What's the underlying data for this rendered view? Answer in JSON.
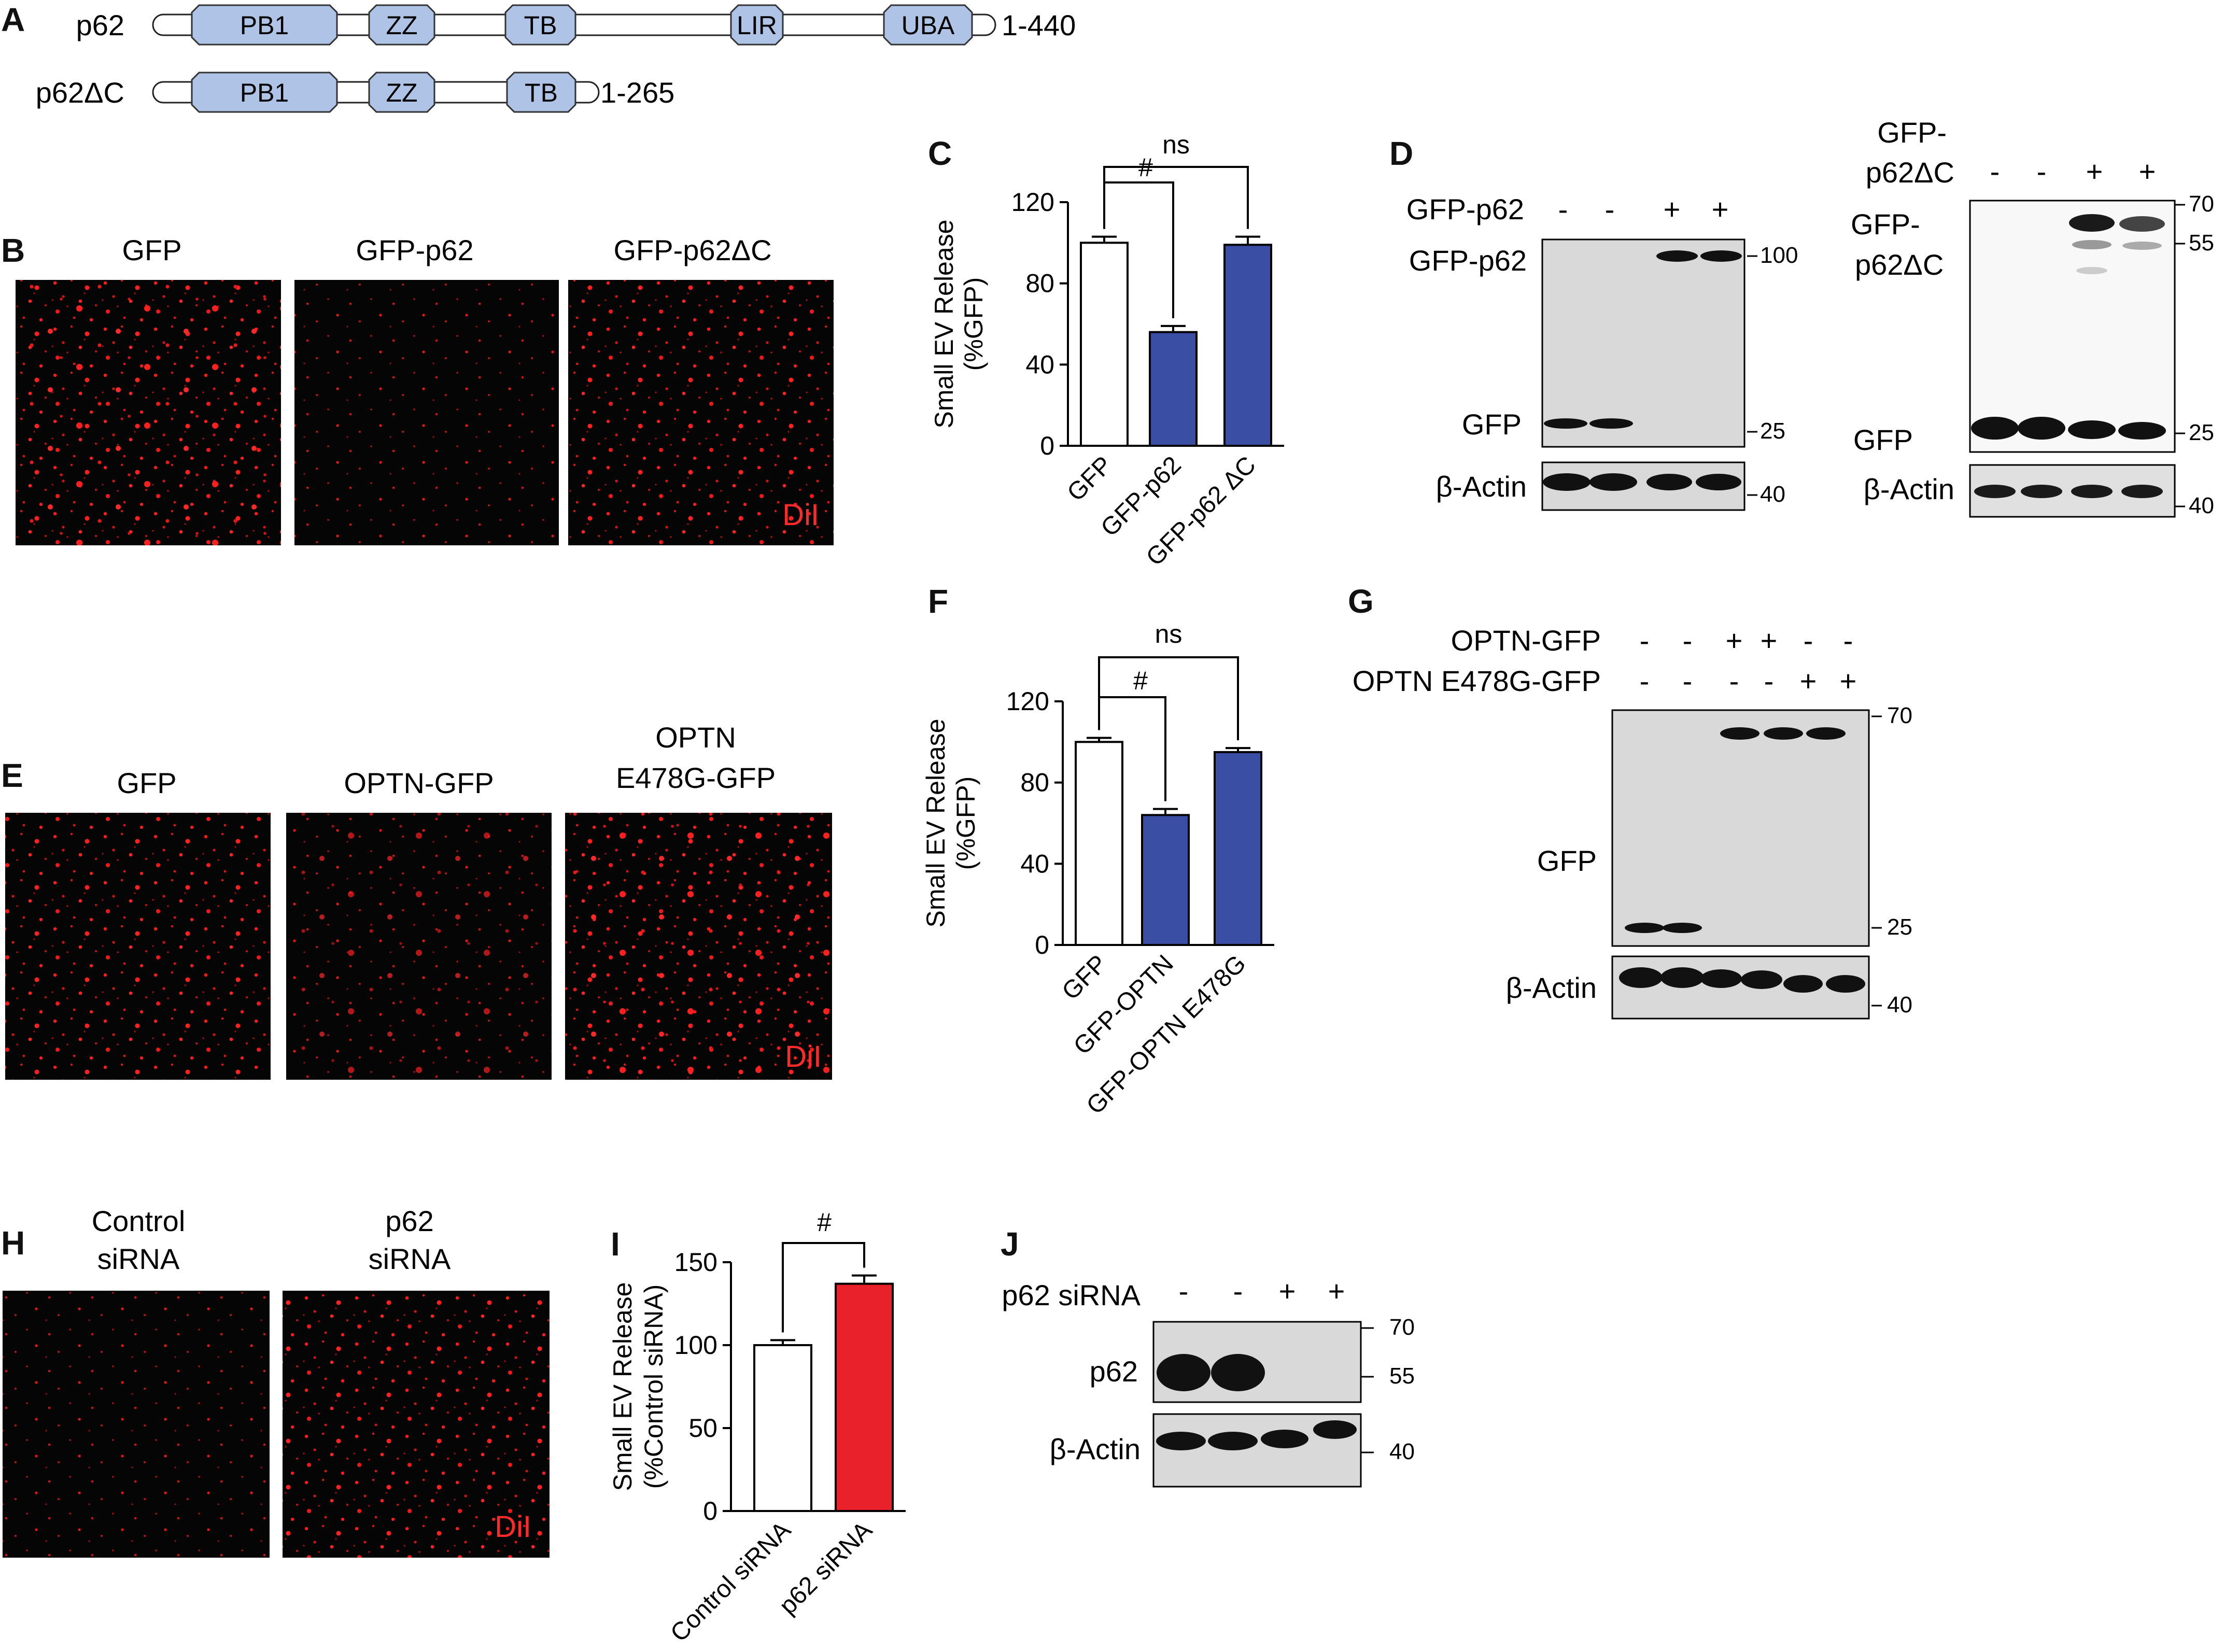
{
  "panel_letters": {
    "A": "A",
    "B": "B",
    "C": "C",
    "D": "D",
    "E": "E",
    "F": "F",
    "G": "G",
    "H": "H",
    "I": "I",
    "J": "J"
  },
  "panel_a": {
    "constructs": [
      {
        "name": "p62",
        "range": "1-440",
        "domains": [
          "PB1",
          "ZZ",
          "TB",
          "LIR",
          "UBA"
        ]
      },
      {
        "name": "p62ΔC",
        "range": "1-265",
        "domains": [
          "PB1",
          "ZZ",
          "TB"
        ]
      }
    ]
  },
  "panel_b": {
    "labels": [
      "GFP",
      "GFP-p62",
      "GFP-p62ΔC"
    ],
    "stain": "DiI"
  },
  "panel_e": {
    "labels": [
      "GFP",
      "OPTN-GFP",
      "OPTN",
      "E478G-GFP"
    ],
    "stain": "DiI"
  },
  "panel_h": {
    "labels": [
      "Control",
      "siRNA",
      "p62",
      "siRNA"
    ],
    "stain": "DiI"
  },
  "panel_d": {
    "left": {
      "row_label": "GFP-p62",
      "signs": [
        "-",
        "-",
        "+",
        "+"
      ],
      "bands": [
        "GFP-p62",
        "GFP",
        "β-Actin"
      ],
      "markers": [
        "100",
        "25",
        "40"
      ]
    },
    "right": {
      "row_label_1": "GFP-",
      "row_label_2": "p62ΔC",
      "signs": [
        "-",
        "-",
        "+",
        "+"
      ],
      "bands_1": "GFP-",
      "bands_2": "p62ΔC",
      "bands_gfp": "GFP",
      "bands_actin": "β-Actin",
      "markers": [
        "70",
        "55",
        "25",
        "40"
      ]
    }
  },
  "panel_g": {
    "row1": "OPTN-GFP",
    "row1_signs": [
      "-",
      "-",
      "+",
      "+",
      "-",
      "-"
    ],
    "row2": "OPTN E478G-GFP",
    "row2_signs": [
      "-",
      "-",
      "-",
      "-",
      "+",
      "+"
    ],
    "bands": [
      "GFP",
      "β-Actin"
    ],
    "markers": [
      "70",
      "25",
      "40"
    ]
  },
  "panel_j": {
    "row": "p62 siRNA",
    "signs": [
      "-",
      "-",
      "+",
      "+"
    ],
    "bands": [
      "p62",
      "β-Actin"
    ],
    "markers": [
      "70",
      "55",
      "40"
    ]
  },
  "chart_data": [
    {
      "panel": "C",
      "type": "bar",
      "ylabel_1": "Small EV Release",
      "ylabel_2": "(%GFP)",
      "ylim": [
        0,
        120
      ],
      "yticks": [
        "0",
        "40",
        "80",
        "120"
      ],
      "categories": [
        "GFP",
        "GFP-p62",
        "GFP-p62 ΔC"
      ],
      "values": [
        100,
        56,
        99
      ],
      "errors": [
        3,
        3,
        4
      ],
      "colors": [
        "#ffffff",
        "#3a4fa3",
        "#3a4fa3"
      ],
      "sig": [
        {
          "label": "#",
          "from": 0,
          "to": 1
        },
        {
          "label": "ns",
          "from": 0,
          "to": 2
        }
      ]
    },
    {
      "panel": "F",
      "type": "bar",
      "ylabel_1": "Small EV Release",
      "ylabel_2": "(%GFP)",
      "ylim": [
        0,
        120
      ],
      "yticks": [
        "0",
        "40",
        "80",
        "120"
      ],
      "categories": [
        "GFP",
        "GFP-OPTN",
        "GFP-OPTN E478G"
      ],
      "values": [
        100,
        64,
        95
      ],
      "errors": [
        2,
        3,
        2
      ],
      "colors": [
        "#ffffff",
        "#3a4fa3",
        "#3a4fa3"
      ],
      "sig": [
        {
          "label": "#",
          "from": 0,
          "to": 1
        },
        {
          "label": "ns",
          "from": 0,
          "to": 2
        }
      ]
    },
    {
      "panel": "I",
      "type": "bar",
      "ylabel_1": "Small EV Release",
      "ylabel_2": "(%Control siRNA)",
      "ylim": [
        0,
        150
      ],
      "yticks": [
        "0",
        "50",
        "100",
        "150"
      ],
      "categories": [
        "Control siRNA",
        "p62 siRNA"
      ],
      "values": [
        100,
        137
      ],
      "errors": [
        3,
        5
      ],
      "colors": [
        "#ffffff",
        "#e8212b"
      ],
      "sig": [
        {
          "label": "#",
          "from": 0,
          "to": 1
        }
      ]
    }
  ]
}
